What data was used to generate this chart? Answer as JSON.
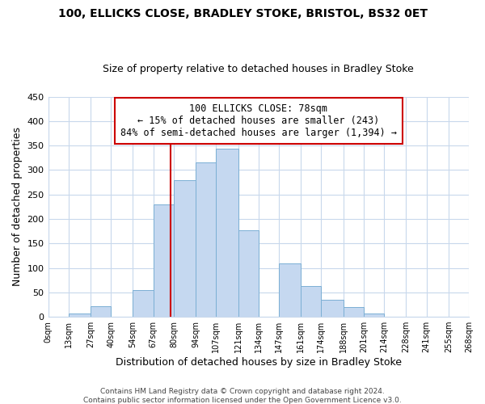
{
  "title": "100, ELLICKS CLOSE, BRADLEY STOKE, BRISTOL, BS32 0ET",
  "subtitle": "Size of property relative to detached houses in Bradley Stoke",
  "xlabel": "Distribution of detached houses by size in Bradley Stoke",
  "ylabel": "Number of detached properties",
  "footer_line1": "Contains HM Land Registry data © Crown copyright and database right 2024.",
  "footer_line2": "Contains public sector information licensed under the Open Government Licence v3.0.",
  "annotation_title": "100 ELLICKS CLOSE: 78sqm",
  "annotation_line1": "← 15% of detached houses are smaller (243)",
  "annotation_line2": "84% of semi-detached houses are larger (1,394) →",
  "property_size": 78,
  "bar_left_edges": [
    0,
    13,
    27,
    40,
    54,
    67,
    80,
    94,
    107,
    121,
    134,
    147,
    161,
    174,
    188,
    201,
    214,
    228,
    241,
    255
  ],
  "bar_widths": [
    13,
    14,
    13,
    14,
    13,
    13,
    14,
    13,
    14,
    13,
    13,
    14,
    13,
    14,
    13,
    13,
    14,
    13,
    14,
    13
  ],
  "bar_heights": [
    0,
    6,
    22,
    0,
    55,
    230,
    280,
    315,
    343,
    177,
    0,
    109,
    63,
    34,
    20,
    7,
    0,
    0,
    0,
    0
  ],
  "bar_color": "#c5d8f0",
  "bar_edgecolor": "#7bafd4",
  "vline_x": 78,
  "vline_color": "#cc0000",
  "xlim": [
    0,
    268
  ],
  "ylim": [
    0,
    450
  ],
  "xtick_positions": [
    0,
    13,
    27,
    40,
    54,
    67,
    80,
    94,
    107,
    121,
    134,
    147,
    161,
    174,
    188,
    201,
    214,
    228,
    241,
    255,
    268
  ],
  "xtick_labels": [
    "0sqm",
    "13sqm",
    "27sqm",
    "40sqm",
    "54sqm",
    "67sqm",
    "80sqm",
    "94sqm",
    "107sqm",
    "121sqm",
    "134sqm",
    "147sqm",
    "161sqm",
    "174sqm",
    "188sqm",
    "201sqm",
    "214sqm",
    "228sqm",
    "241sqm",
    "255sqm",
    "268sqm"
  ],
  "ytick_positions": [
    0,
    50,
    100,
    150,
    200,
    250,
    300,
    350,
    400,
    450
  ],
  "background_color": "#ffffff",
  "grid_color": "#c8d8ec",
  "annotation_box_edgecolor": "#cc0000",
  "annotation_box_facecolor": "#ffffff"
}
